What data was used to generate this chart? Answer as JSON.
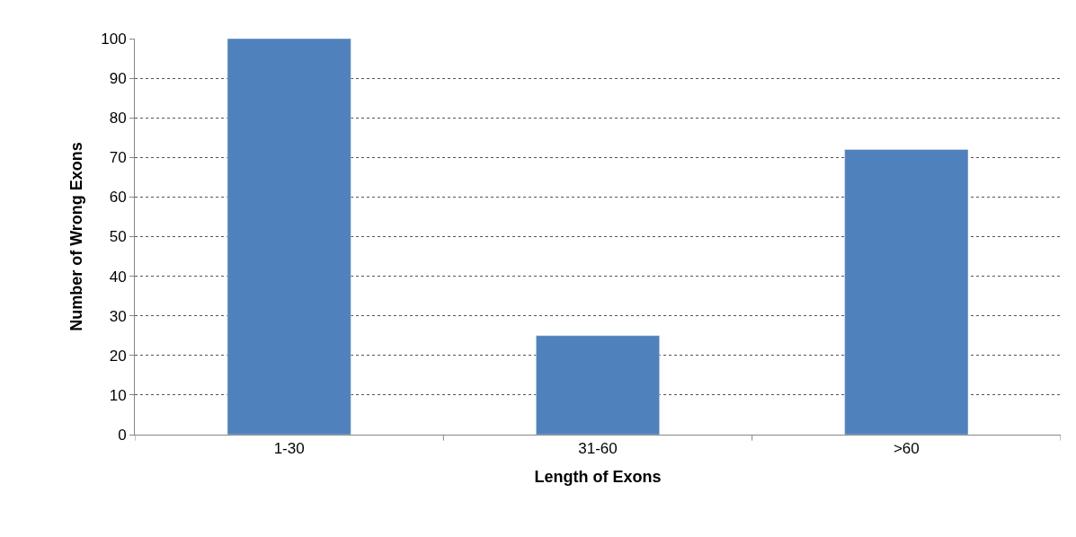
{
  "chart_data": {
    "type": "bar",
    "xlabel": "Length of Exons",
    "ylabel": "Number of Wrong Exons",
    "categories": [
      "1-30",
      "31-60",
      ">60"
    ],
    "values": [
      100,
      25,
      72
    ],
    "color": "#4f81bd",
    "ylim": [
      0,
      100
    ],
    "yticks": [
      0,
      10,
      20,
      30,
      40,
      50,
      60,
      70,
      80,
      90,
      100
    ],
    "grid": "y",
    "legend": false
  }
}
